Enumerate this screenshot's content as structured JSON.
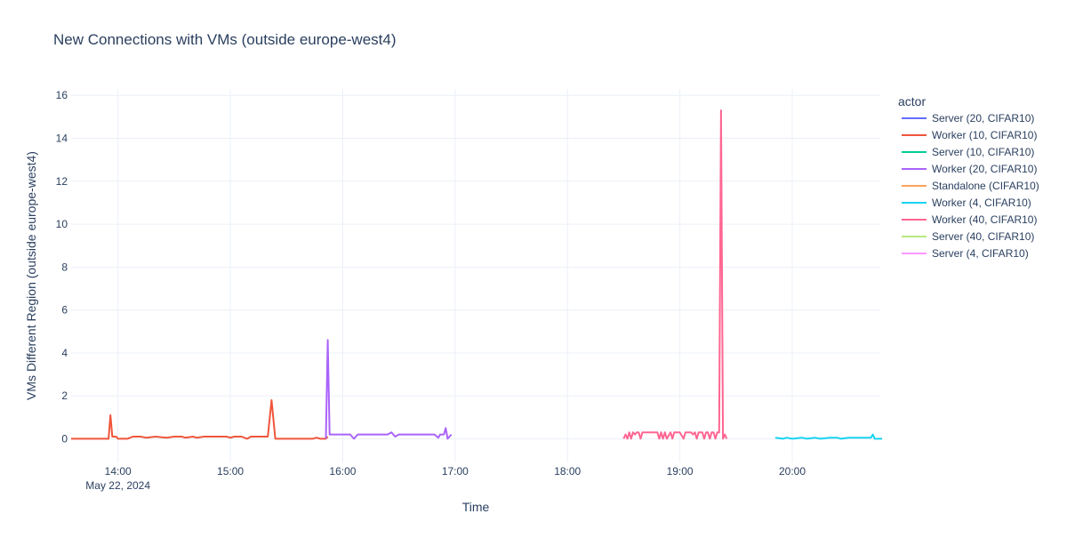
{
  "chart_data": {
    "type": "line",
    "title": "New Connections with VMs (outside europe-west4)",
    "xlabel": "Time",
    "ylabel": "VMs Different Region (outside europe-west4)",
    "x_range": [
      "2024-05-22 13:35",
      "2024-05-22 20:47"
    ],
    "x_ticks": [
      "14:00",
      "15:00",
      "16:00",
      "17:00",
      "18:00",
      "19:00",
      "20:00"
    ],
    "x_date_label": "May 22, 2024",
    "ylim": [
      -1.1,
      16.3
    ],
    "y_ticks": [
      0,
      2,
      4,
      6,
      8,
      10,
      12,
      14,
      16
    ],
    "grid": true,
    "legend": {
      "title": "actor",
      "placement": "right"
    },
    "series": [
      {
        "name": "Server (20, CIFAR10)",
        "color": "#636efa",
        "points": []
      },
      {
        "name": "Worker (10, CIFAR10)",
        "color": "#EF553B",
        "points": [
          [
            "13:35",
            0
          ],
          [
            "13:51",
            0
          ],
          [
            "13:55",
            0
          ],
          [
            "13:56",
            1.1
          ],
          [
            "13:57",
            0.1
          ],
          [
            "13:59",
            0.1
          ],
          [
            "14:00",
            0
          ],
          [
            "14:05",
            0
          ],
          [
            "14:08",
            0.1
          ],
          [
            "14:12",
            0.1
          ],
          [
            "14:15",
            0.05
          ],
          [
            "14:20",
            0.1
          ],
          [
            "14:26",
            0.05
          ],
          [
            "14:30",
            0.1
          ],
          [
            "14:34",
            0.1
          ],
          [
            "14:36",
            0.05
          ],
          [
            "14:40",
            0.1
          ],
          [
            "14:42",
            0.05
          ],
          [
            "14:46",
            0.1
          ],
          [
            "14:50",
            0.1
          ],
          [
            "14:54",
            0.1
          ],
          [
            "14:58",
            0.1
          ],
          [
            "15:00",
            0.05
          ],
          [
            "15:02",
            0.1
          ],
          [
            "15:06",
            0.1
          ],
          [
            "15:09",
            0
          ],
          [
            "15:11",
            0.1
          ],
          [
            "15:14",
            0.1
          ],
          [
            "15:17",
            0.1
          ],
          [
            "15:20",
            0.1
          ],
          [
            "15:22",
            1.8
          ],
          [
            "15:24",
            0
          ],
          [
            "15:26",
            0
          ],
          [
            "15:40",
            0
          ],
          [
            "15:44",
            0
          ],
          [
            "15:46",
            0.05
          ],
          [
            "15:48",
            0
          ],
          [
            "15:51",
            0
          ],
          [
            "15:52",
            0.1
          ]
        ]
      },
      {
        "name": "Server (10, CIFAR10)",
        "color": "#00cc96",
        "points": []
      },
      {
        "name": "Worker (20, CIFAR10)",
        "color": "#ab63fa",
        "points": [
          [
            "15:51",
            0
          ],
          [
            "15:52",
            4.6
          ],
          [
            "15:53",
            0.2
          ],
          [
            "16:00",
            0.2
          ],
          [
            "16:04",
            0.2
          ],
          [
            "16:06",
            0
          ],
          [
            "16:08",
            0.2
          ],
          [
            "16:12",
            0.2
          ],
          [
            "16:20",
            0.2
          ],
          [
            "16:24",
            0.2
          ],
          [
            "16:26",
            0.3
          ],
          [
            "16:28",
            0.1
          ],
          [
            "16:30",
            0.2
          ],
          [
            "16:34",
            0.2
          ],
          [
            "16:38",
            0.2
          ],
          [
            "16:44",
            0.2
          ],
          [
            "16:49",
            0.2
          ],
          [
            "16:51",
            0.05
          ],
          [
            "16:52",
            0.2
          ],
          [
            "16:54",
            0.2
          ],
          [
            "16:55",
            0.5
          ],
          [
            "16:56",
            0
          ],
          [
            "16:58",
            0.2
          ]
        ]
      },
      {
        "name": "Standalone (CIFAR10)",
        "color": "#FFA15A",
        "points": []
      },
      {
        "name": "Worker (4, CIFAR10)",
        "color": "#19d3f3",
        "points": [
          [
            "19:51",
            0.05
          ],
          [
            "19:55",
            0
          ],
          [
            "19:57",
            0.05
          ],
          [
            "20:00",
            0
          ],
          [
            "20:05",
            0.05
          ],
          [
            "20:08",
            0
          ],
          [
            "20:12",
            0.05
          ],
          [
            "20:15",
            0
          ],
          [
            "20:20",
            0.05
          ],
          [
            "20:24",
            0.05
          ],
          [
            "20:26",
            0
          ],
          [
            "20:30",
            0.05
          ],
          [
            "20:35",
            0.05
          ],
          [
            "20:40",
            0.05
          ],
          [
            "20:42",
            0.05
          ],
          [
            "20:43",
            0.2
          ],
          [
            "20:44",
            0
          ],
          [
            "20:48",
            0
          ]
        ]
      },
      {
        "name": "Worker (40, CIFAR10)",
        "color": "#FF6692",
        "points": [
          [
            "18:30",
            0
          ],
          [
            "18:31",
            0.2
          ],
          [
            "18:32",
            0
          ],
          [
            "18:33",
            0.3
          ],
          [
            "18:34",
            0
          ],
          [
            "18:35",
            0.3
          ],
          [
            "18:36",
            0.2
          ],
          [
            "18:37",
            0.3
          ],
          [
            "18:38",
            0.3
          ],
          [
            "18:39",
            0
          ],
          [
            "18:40",
            0.3
          ],
          [
            "18:42",
            0.3
          ],
          [
            "18:45",
            0.3
          ],
          [
            "18:47",
            0.3
          ],
          [
            "18:48",
            0.3
          ],
          [
            "18:49",
            0
          ],
          [
            "18:50",
            0.3
          ],
          [
            "18:51",
            0
          ],
          [
            "18:52",
            0.3
          ],
          [
            "18:53",
            0
          ],
          [
            "18:55",
            0.3
          ],
          [
            "18:56",
            0
          ],
          [
            "18:57",
            0.3
          ],
          [
            "19:00",
            0.3
          ],
          [
            "19:02",
            0
          ],
          [
            "19:03",
            0.3
          ],
          [
            "19:06",
            0.3
          ],
          [
            "19:07",
            0.2
          ],
          [
            "19:08",
            0.3
          ],
          [
            "19:09",
            0
          ],
          [
            "19:10",
            0.3
          ],
          [
            "19:12",
            0.3
          ],
          [
            "19:13",
            0
          ],
          [
            "19:14",
            0.3
          ],
          [
            "19:15",
            0.3
          ],
          [
            "19:16",
            0
          ],
          [
            "19:17",
            0.3
          ],
          [
            "19:18",
            0.3
          ],
          [
            "19:19",
            0
          ],
          [
            "19:20",
            0.3
          ],
          [
            "19:21",
            0.3
          ],
          [
            "19:22",
            15.3
          ],
          [
            "19:23",
            0
          ],
          [
            "19:24",
            0.2
          ],
          [
            "19:25",
            0
          ]
        ]
      },
      {
        "name": "Server (40, CIFAR10)",
        "color": "#B6E880",
        "points": []
      },
      {
        "name": "Server (4, CIFAR10)",
        "color": "#FF97FF",
        "points": []
      }
    ]
  }
}
